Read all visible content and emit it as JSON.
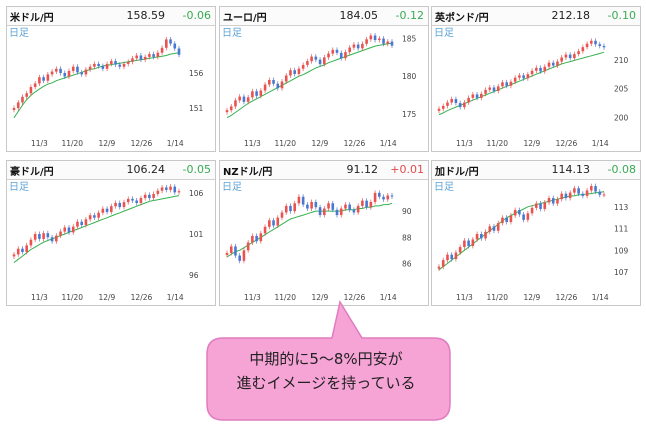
{
  "panels": [
    {
      "pair": "米ドル/円",
      "price": "158.59",
      "change": "-0.06",
      "dir": "neg",
      "period": "日足",
      "yticks": [
        "156",
        "151"
      ],
      "xticks": [
        "11/3",
        "11/20",
        "12/9",
        "12/26",
        "1/14"
      ],
      "ylim": [
        148,
        162
      ],
      "close": [
        151,
        151.8,
        152.6,
        153.1,
        154.0,
        154.5,
        155.4,
        154.9,
        155.8,
        156.2,
        156.6,
        156.0,
        155.5,
        156.3,
        156.9,
        156.1,
        155.8,
        156.5,
        156.9,
        157.3,
        157.0,
        156.6,
        157.3,
        157.7,
        157.2,
        156.9,
        157.3,
        157.6,
        158.1,
        158.5,
        157.9,
        158.3,
        158.7,
        158.3,
        158.9,
        159.6,
        160.8,
        160.2,
        159.5,
        158.6
      ],
      "ma": [
        149.6,
        150.5,
        151.4,
        152.2,
        152.8,
        153.3,
        153.7,
        154.1,
        154.4,
        154.6,
        154.9,
        155.1,
        155.3,
        155.5,
        155.7,
        155.9,
        156.1,
        156.3,
        156.5,
        156.6,
        156.8,
        157.0,
        157.1,
        157.2,
        157.3,
        157.4,
        157.5,
        157.6,
        157.7,
        157.8,
        157.9,
        158.0,
        158.1,
        158.2,
        158.3,
        158.4,
        158.5,
        158.7,
        158.8,
        158.9
      ]
    },
    {
      "pair": "ユーロ/円",
      "price": "184.05",
      "change": "-0.12",
      "dir": "neg",
      "period": "日足",
      "yticks": [
        "185",
        "180",
        "175"
      ],
      "xticks": [
        "11/3",
        "11/20",
        "12/9",
        "12/26",
        "1/14"
      ],
      "ylim": [
        173,
        186
      ],
      "close": [
        175.5,
        176,
        176.8,
        177.3,
        176.6,
        177.2,
        178,
        177.4,
        178.1,
        178.9,
        179.5,
        179,
        178.4,
        179.3,
        180.1,
        180.8,
        180.3,
        181,
        181.5,
        182,
        182.6,
        182.2,
        181.6,
        182.5,
        183,
        183.5,
        183.1,
        182.4,
        183.2,
        183.8,
        184.2,
        183.7,
        184.3,
        184.9,
        185.4,
        184.8,
        185,
        184.3,
        184.6,
        184.05
      ],
      "ma": [
        174.5,
        174.8,
        175.2,
        175.6,
        176,
        176.4,
        176.7,
        177,
        177.3,
        177.6,
        177.9,
        178.2,
        178.5,
        178.8,
        179.1,
        179.4,
        179.7,
        180,
        180.2,
        180.5,
        180.8,
        181.1,
        181.3,
        181.5,
        181.8,
        182,
        182.2,
        182.4,
        182.6,
        182.8,
        183,
        183.2,
        183.4,
        183.6,
        183.8,
        184,
        184.1,
        184.2,
        184.3,
        184.4
      ]
    },
    {
      "pair": "英ポンド/円",
      "price": "212.18",
      "change": "-0.10",
      "dir": "neg",
      "period": "日足",
      "yticks": [
        "210",
        "205",
        "200"
      ],
      "xticks": [
        "11/3",
        "11/20",
        "12/9",
        "12/26",
        "1/14"
      ],
      "ylim": [
        198,
        215
      ],
      "close": [
        201.5,
        202,
        202.6,
        203.2,
        202.5,
        201.8,
        202.6,
        203.4,
        204,
        203.4,
        204.1,
        204.8,
        205.2,
        204.6,
        205.4,
        206.1,
        205.5,
        206.2,
        206.9,
        207.3,
        206.8,
        207.5,
        208.1,
        208.6,
        208,
        208.8,
        209.5,
        209,
        209.7,
        210.4,
        210.9,
        210.3,
        211,
        211.5,
        212.2,
        212.8,
        213.3,
        212.7,
        212.4,
        212.18
      ],
      "ma": [
        200.5,
        200.8,
        201.2,
        201.5,
        201.8,
        202.1,
        202.4,
        202.7,
        203,
        203.3,
        203.6,
        203.9,
        204.2,
        204.5,
        204.8,
        205.1,
        205.4,
        205.7,
        206,
        206.3,
        206.6,
        206.9,
        207.2,
        207.5,
        207.8,
        208.1,
        208.4,
        208.7,
        209,
        209.3,
        209.5,
        209.7,
        209.9,
        210.1,
        210.3,
        210.5,
        210.7,
        210.9,
        211.1,
        211.3
      ]
    },
    {
      "pair": "豪ドル/円",
      "price": "106.24",
      "change": "-0.05",
      "dir": "neg",
      "period": "日足",
      "yticks": [
        "106",
        "101",
        "96"
      ],
      "xticks": [
        "11/3",
        "11/20",
        "12/9",
        "12/26",
        "1/14"
      ],
      "ylim": [
        95,
        107
      ],
      "close": [
        98.5,
        99.2,
        98.8,
        99.6,
        100.3,
        101,
        100.4,
        101.1,
        100.6,
        100.1,
        100.8,
        101.3,
        101.8,
        101.2,
        101.9,
        102.5,
        102.1,
        102.8,
        103.3,
        103,
        103.6,
        104.1,
        103.7,
        104.4,
        104.8,
        104.3,
        104.9,
        105.3,
        105.1,
        104.8,
        105.4,
        105.8,
        105.4,
        105.9,
        106.3,
        106.7,
        106.4,
        106.8,
        106.1,
        106.24
      ],
      "ma": [
        97.5,
        97.9,
        98.3,
        98.7,
        99.1,
        99.4,
        99.7,
        100,
        100.2,
        100.4,
        100.6,
        100.8,
        101,
        101.2,
        101.4,
        101.6,
        101.8,
        102,
        102.2,
        102.4,
        102.6,
        102.8,
        103,
        103.2,
        103.4,
        103.6,
        103.8,
        104,
        104.2,
        104.4,
        104.6,
        104.8,
        105,
        105.1,
        105.2,
        105.3,
        105.4,
        105.5,
        105.6,
        105.7
      ]
    },
    {
      "pair": "NZドル/円",
      "price": "91.12",
      "change": "+0.01",
      "dir": "pos",
      "period": "日足",
      "yticks": [
        "90",
        "88",
        "86"
      ],
      "xticks": [
        "11/3",
        "11/20",
        "12/9",
        "12/26",
        "1/14"
      ],
      "ylim": [
        84.5,
        92
      ],
      "close": [
        86.8,
        87.3,
        86.6,
        86.2,
        87,
        87.6,
        88.1,
        87.7,
        88.3,
        88.8,
        89.3,
        88.9,
        89.5,
        89.9,
        90.4,
        90,
        90.6,
        91.1,
        90.5,
        90.2,
        90.7,
        90.3,
        89.7,
        90.2,
        90.6,
        90.1,
        89.7,
        90.2,
        90.5,
        90.1,
        89.9,
        90.4,
        90.8,
        90.3,
        90.7,
        91.4,
        91.1,
        90.9,
        91.2,
        91.12
      ],
      "ma": [
        86.5,
        86.7,
        86.9,
        87,
        87.2,
        87.4,
        87.6,
        87.8,
        88,
        88.2,
        88.4,
        88.6,
        88.8,
        89,
        89.2,
        89.4,
        89.5,
        89.6,
        89.7,
        89.8,
        89.9,
        90,
        90,
        90,
        90,
        90,
        90,
        90,
        90.1,
        90.1,
        90.1,
        90.2,
        90.2,
        90.3,
        90.3,
        90.4,
        90.4,
        90.5,
        90.5,
        90.6
      ]
    },
    {
      "pair": "加ドル/円",
      "price": "114.13",
      "change": "-0.08",
      "dir": "neg",
      "period": "日足",
      "yticks": [
        "113",
        "111",
        "109",
        "107"
      ],
      "xticks": [
        "11/3",
        "11/20",
        "12/9",
        "12/26",
        "1/14"
      ],
      "ylim": [
        106,
        115
      ],
      "close": [
        107.5,
        108.1,
        108.6,
        108.2,
        108.8,
        109.3,
        109.9,
        109.4,
        110,
        110.5,
        110.1,
        110.7,
        111.2,
        110.8,
        111.5,
        112,
        111.6,
        112.2,
        112.7,
        112.3,
        111.8,
        112.4,
        112.9,
        113.3,
        112.8,
        113.4,
        113.8,
        113.3,
        113.7,
        114.2,
        113.8,
        114.3,
        114.7,
        114.2,
        114,
        114.5,
        114.9,
        114.4,
        114.1,
        114.13
      ],
      "ma": [
        107.2,
        107.5,
        107.8,
        108.1,
        108.4,
        108.7,
        109,
        109.3,
        109.6,
        109.9,
        110.2,
        110.5,
        110.8,
        111.1,
        111.4,
        111.7,
        112,
        112.2,
        112.4,
        112.6,
        112.8,
        113,
        113.1,
        113.2,
        113.3,
        113.4,
        113.5,
        113.6,
        113.7,
        113.8,
        113.9,
        114,
        114,
        114.1,
        114.1,
        114.2,
        114.2,
        114.3,
        114.3,
        114.4
      ]
    }
  ],
  "callout": {
    "line1": "中期的に5～8%円安が",
    "line2": "進むイメージを持っている",
    "fill": "#f6a3d6",
    "stroke": "#e07cbf"
  },
  "colors": {
    "up": "#e8534f",
    "down": "#4a78d0",
    "ma": "#35b24f",
    "period": "#5ba3d8",
    "tick": "#444444"
  }
}
